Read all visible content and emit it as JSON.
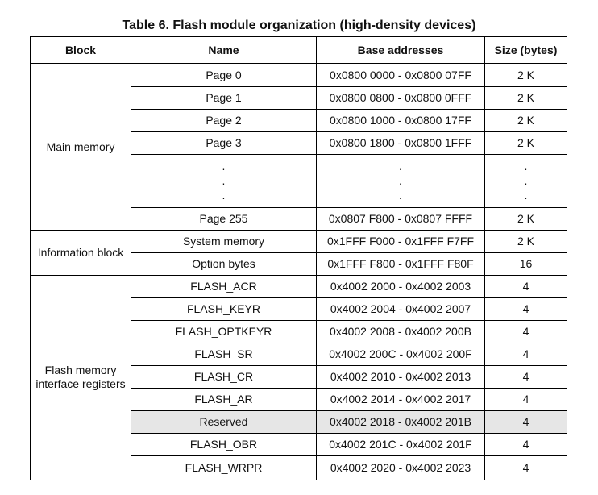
{
  "caption": "Table 6. Flash module organization (high-density devices)",
  "headers": {
    "block": "Block",
    "name": "Name",
    "address": "Base addresses",
    "size": "Size (bytes)"
  },
  "main_memory": {
    "block": "Main memory",
    "rows": [
      {
        "name": "Page 0",
        "address": "0x0800 0000 - 0x0800 07FF",
        "size": "2 K"
      },
      {
        "name": "Page 1",
        "address": "0x0800 0800 - 0x0800 0FFF",
        "size": "2 K"
      },
      {
        "name": "Page 2",
        "address": "0x0800 1000 - 0x0800 17FF",
        "size": "2 K"
      },
      {
        "name": "Page 3",
        "address": "0x0800 1800 - 0x0800 1FFF",
        "size": "2 K"
      }
    ],
    "ellipsis": ".",
    "last_row": {
      "name": "Page 255",
      "address": "0x0807 F800 - 0x0807 FFFF",
      "size": "2 K"
    }
  },
  "information_block": {
    "block": "Information block",
    "rows": [
      {
        "name": "System memory",
        "address": "0x1FFF F000 - 0x1FFF F7FF",
        "size": "2 K"
      },
      {
        "name": "Option bytes",
        "address": "0x1FFF F800 - 0x1FFF F80F",
        "size": "16"
      }
    ]
  },
  "registers": {
    "block": "Flash memory interface registers",
    "rows": [
      {
        "name": "FLASH_ACR",
        "address": "0x4002 2000 - 0x4002 2003",
        "size": "4"
      },
      {
        "name": "FLASH_KEYR",
        "address": "0x4002 2004 - 0x4002 2007",
        "size": "4"
      },
      {
        "name": "FLASH_OPTKEYR",
        "address": "0x4002 2008 - 0x4002 200B",
        "size": "4"
      },
      {
        "name": "FLASH_SR",
        "address": "0x4002 200C - 0x4002 200F",
        "size": "4"
      },
      {
        "name": "FLASH_CR",
        "address": "0x4002 2010 - 0x4002 2013",
        "size": "4"
      },
      {
        "name": "FLASH_AR",
        "address": "0x4002 2014 - 0x4002 2017",
        "size": "4"
      },
      {
        "name": "Reserved",
        "address": "0x4002 2018 - 0x4002 201B",
        "size": "4"
      },
      {
        "name": "FLASH_OBR",
        "address": "0x4002 201C - 0x4002 201F",
        "size": "4"
      },
      {
        "name": "FLASH_WRPR",
        "address": "0x4002 2020 - 0x4002 2023",
        "size": "4"
      }
    ]
  }
}
